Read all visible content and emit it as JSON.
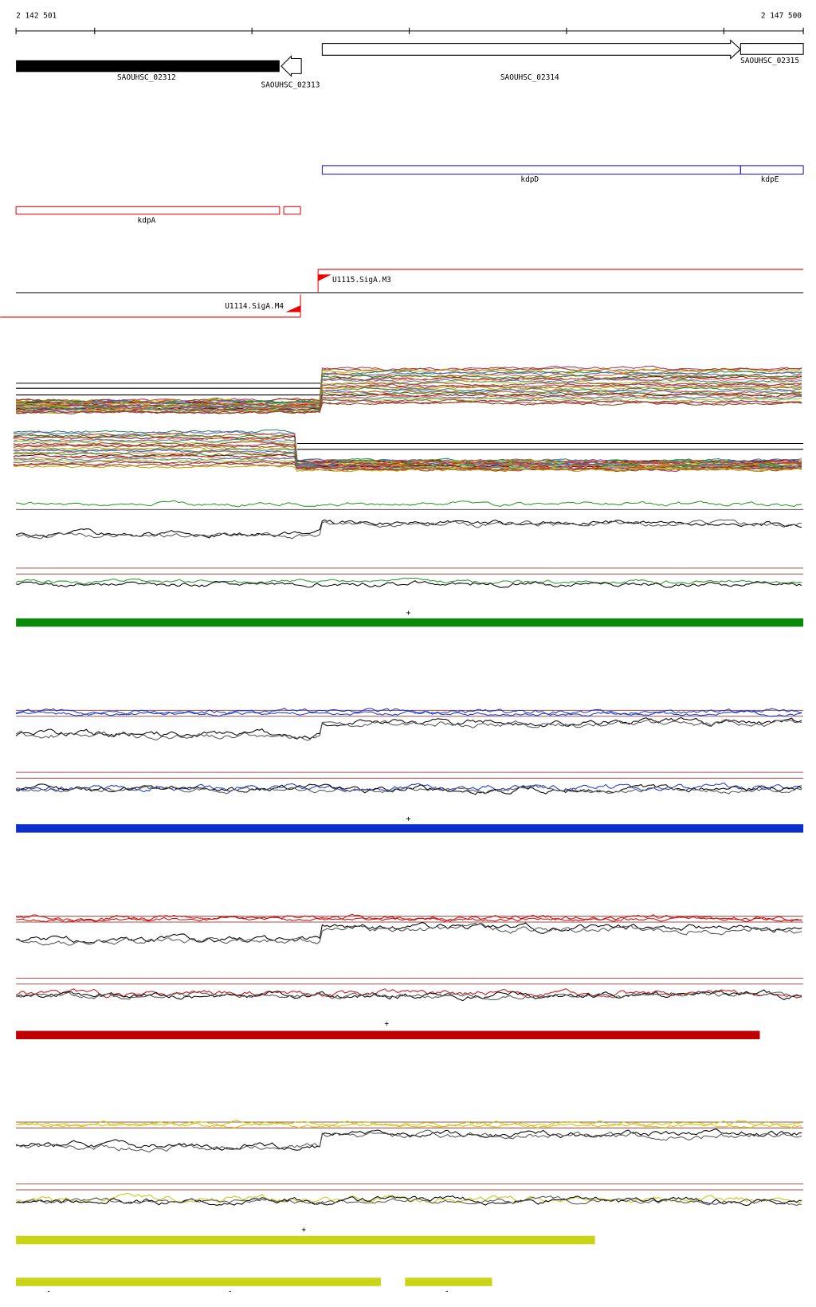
{
  "ruler": {
    "start": "2 142 501",
    "end": "2 147 500"
  },
  "genes": [
    {
      "label": "SAOUHSC_02312"
    },
    {
      "label": "SAOUHSC_02313"
    },
    {
      "label": "SAOUHSC_02314"
    },
    {
      "label": "SAOUHSC_02315"
    }
  ],
  "operon_genes": [
    {
      "label": "kdpD"
    },
    {
      "label": "kdpE"
    },
    {
      "label": "kdpA"
    }
  ],
  "transcription_units": [
    {
      "label": "U1115.SigA.M3"
    },
    {
      "label": "U1114.SigA.M4"
    }
  ],
  "strand_marks": [
    "+",
    "+",
    "+",
    "+",
    "-",
    "-",
    "-"
  ]
}
